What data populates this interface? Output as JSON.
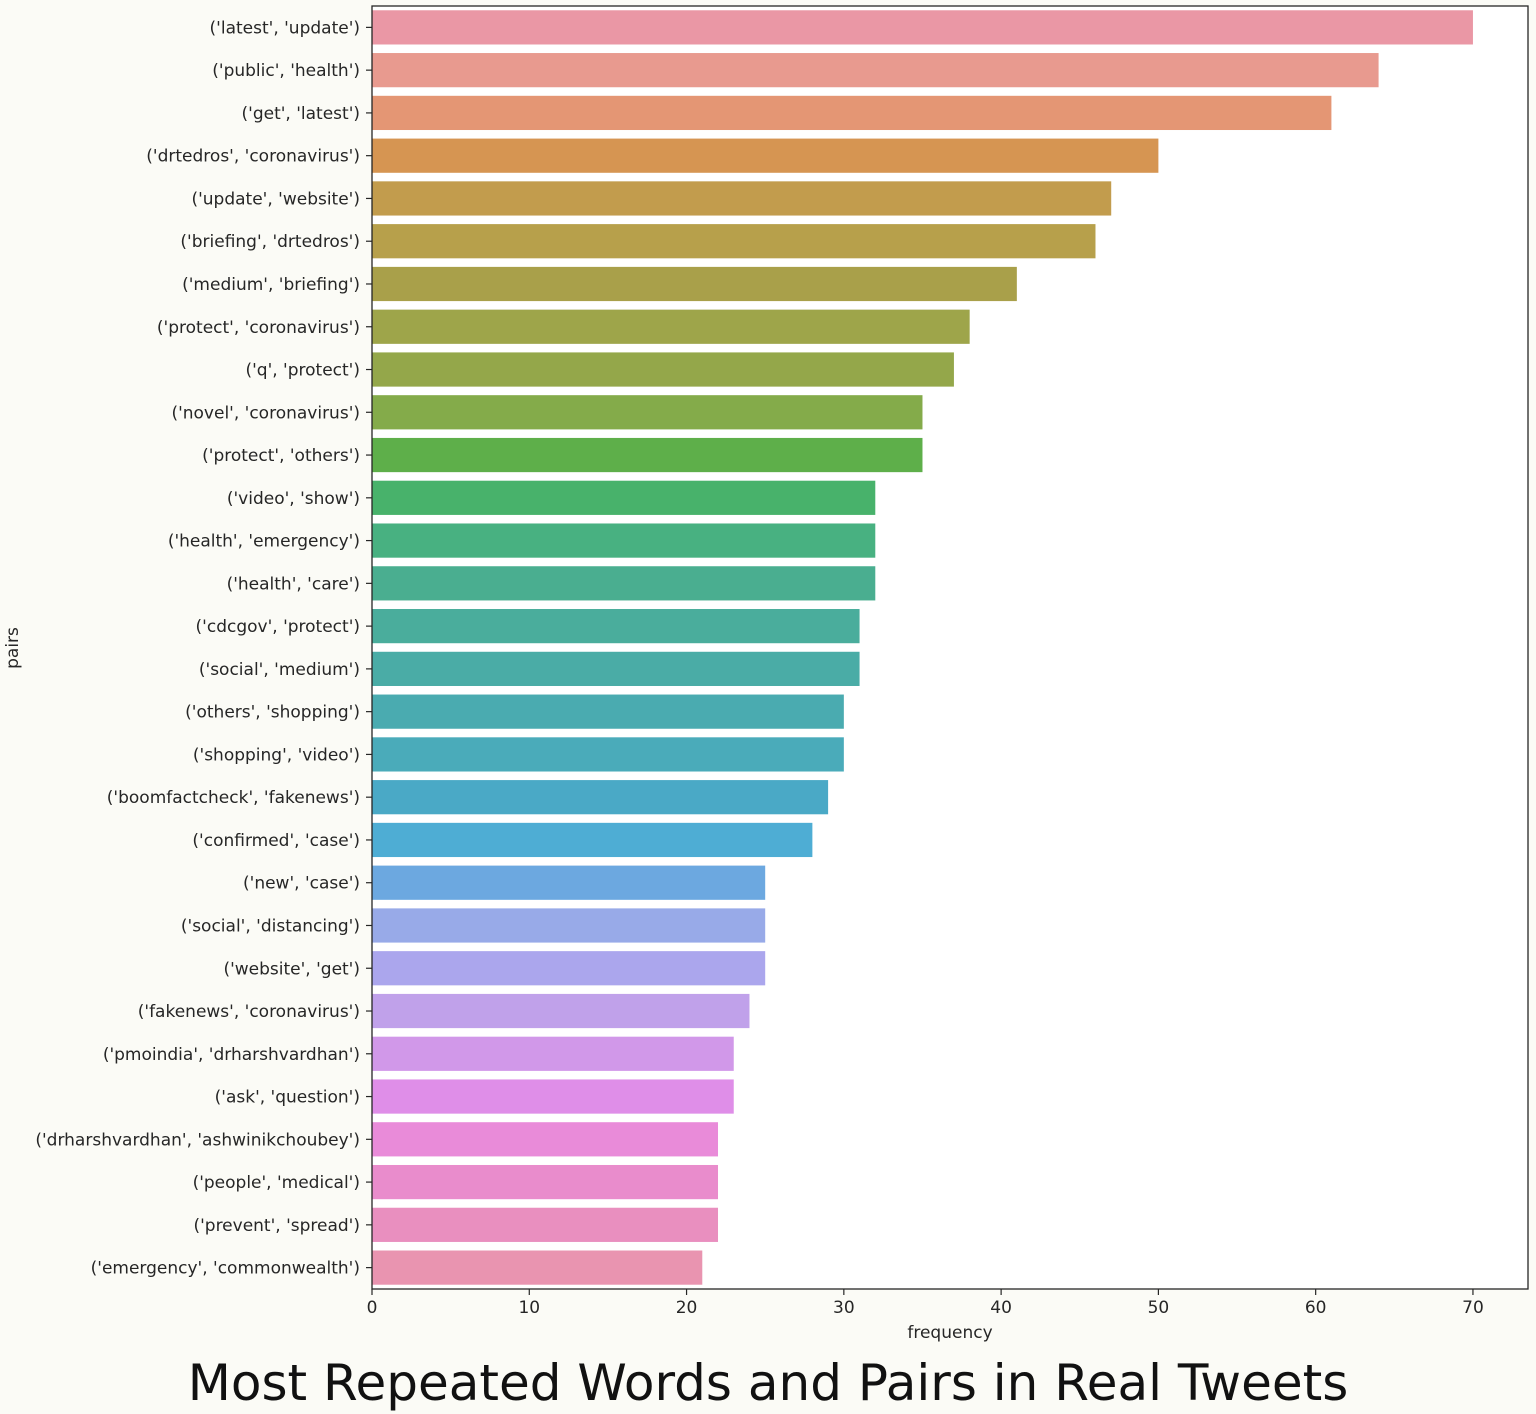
{
  "caption": "Most Repeated Words and Pairs in Real Tweets",
  "chart_data": {
    "type": "bar",
    "orientation": "horizontal",
    "xlabel": "frequency",
    "ylabel": "pairs",
    "xlim": [
      0,
      73.5
    ],
    "xticks": [
      0,
      10,
      20,
      30,
      40,
      50,
      60,
      70
    ],
    "grid": false,
    "categories": [
      "('latest', 'update')",
      "('public', 'health')",
      "('get', 'latest')",
      "('drtedros', 'coronavirus')",
      "('update', 'website')",
      "('briefing', 'drtedros')",
      "('medium', 'briefing')",
      "('protect', 'coronavirus')",
      "('q', 'protect')",
      "('novel', 'coronavirus')",
      "('protect', 'others')",
      "('video', 'show')",
      "('health', 'emergency')",
      "('health', 'care')",
      "('cdcgov', 'protect')",
      "('social', 'medium')",
      "('others', 'shopping')",
      "('shopping', 'video')",
      "('boomfactcheck', 'fakenews')",
      "('confirmed', 'case')",
      "('new', 'case')",
      "('social', 'distancing')",
      "('website', 'get')",
      "('fakenews', 'coronavirus')",
      "('pmoindia', 'drharshvardhan')",
      "('ask', 'question')",
      "('drharshvardhan', 'ashwinikchoubey')",
      "('people', 'medical')",
      "('prevent', 'spread')",
      "('emergency', 'commonwealth')"
    ],
    "values": [
      70,
      64,
      61,
      50,
      47,
      46,
      41,
      38,
      37,
      35,
      35,
      32,
      32,
      32,
      31,
      31,
      30,
      30,
      29,
      28,
      25,
      25,
      25,
      24,
      23,
      23,
      22,
      22,
      22,
      21
    ],
    "colors": [
      "#ea97a5",
      "#e89a8f",
      "#e49674",
      "#d69552",
      "#c29c4d",
      "#b7a04b",
      "#a9a04a",
      "#9ea54a",
      "#94a74a",
      "#84ab4a",
      "#5eaf4a",
      "#48b26b",
      "#48b181",
      "#4aae90",
      "#4aad9c",
      "#4aaca6",
      "#4aabb0",
      "#4aabba",
      "#4aa9c6",
      "#4eadd4",
      "#6ca8e0",
      "#98aae8",
      "#aba6ed",
      "#c0a1ea",
      "#d198e9",
      "#df8ee8",
      "#e98bd9",
      "#e98ccc",
      "#e98fbf",
      "#e994b0"
    ]
  }
}
